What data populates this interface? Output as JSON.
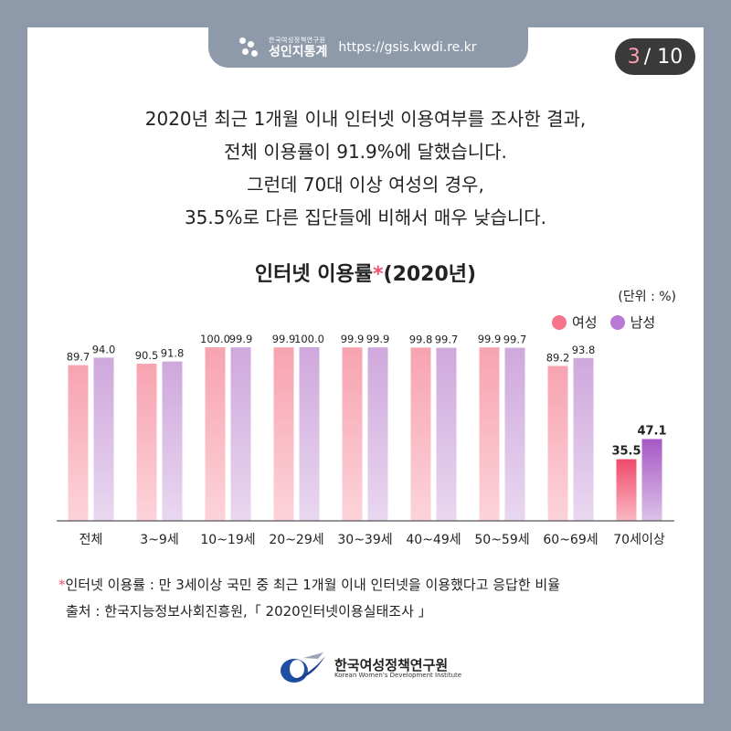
{
  "header": {
    "org_small": "한국여성정책연구원",
    "brand": "성인지통계",
    "url": "https://gsis.kwdi.re.kr"
  },
  "page_indicator": {
    "current": "3",
    "total": "/ 10"
  },
  "intro": {
    "line1": "2020년 최근 1개월 이내 인터넷 이용여부를 조사한 결과,",
    "line2": "전체 이용률이 91.9%에 달했습니다.",
    "line3": "그런데 70대 이상 여성의 경우,",
    "line4": "35.5%로 다른 집단들에 비해서 매우 낮습니다."
  },
  "chart_data": {
    "type": "bar",
    "title": "인터넷 이용률",
    "title_mark": "*",
    "title_suffix": "(2020년)",
    "unit": "(단위 : %)",
    "categories": [
      "전체",
      "3~9세",
      "10~19세",
      "20~29세",
      "30~39세",
      "40~49세",
      "50~59세",
      "60~69세",
      "70세이상"
    ],
    "series": [
      {
        "name": "여성",
        "values": [
          89.7,
          90.5,
          100.0,
          99.9,
          99.9,
          99.8,
          99.9,
          89.2,
          35.5
        ]
      },
      {
        "name": "남성",
        "values": [
          94.0,
          91.8,
          99.9,
          100.0,
          99.9,
          99.7,
          99.7,
          93.8,
          47.1
        ]
      }
    ],
    "ylim": [
      0,
      100
    ],
    "legend_position": "top-right",
    "highlight_category": "70세이상",
    "colors": {
      "female": "#f7a3b0",
      "male": "#cfa8dc",
      "female_highlight": "#ee4a6a",
      "male_highlight": "#a857c6"
    }
  },
  "footnote": {
    "mark": "*",
    "definition": "인터넷 이용률 : 만 3세이상 국민 중 최근 1개월 이내 인터넷을 이용했다고 응답한 비율",
    "source": "출처 : 한국지능정보사회진흥원,「 2020인터넷이용실태조사 」"
  },
  "footer": {
    "org_name_ko": "한국여성정책연구원",
    "org_name_en": "Korean Women's Development Institute"
  }
}
